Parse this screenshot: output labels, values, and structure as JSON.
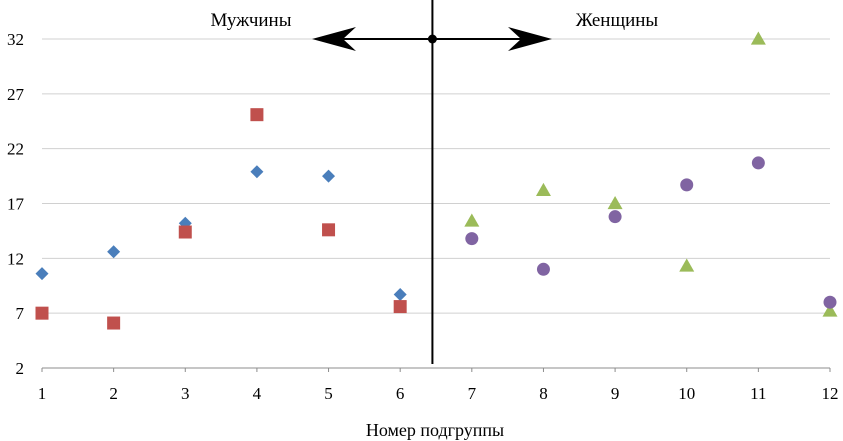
{
  "chart_data": {
    "type": "scatter",
    "xlabel": "Номер подгруппы",
    "ylabel": "",
    "xlim": [
      1,
      12
    ],
    "ylim": [
      2,
      35
    ],
    "x_ticks": [
      1,
      2,
      3,
      4,
      5,
      6,
      7,
      8,
      9,
      10,
      11,
      12
    ],
    "y_ticks": [
      2,
      7,
      12,
      17,
      22,
      27,
      32
    ],
    "grid": "horizontal",
    "legend": "none",
    "divider_x": 6.45,
    "annotations": {
      "left": "Мужчины",
      "right": "Женщины"
    },
    "series": [
      {
        "marker": "diamond",
        "color": "#4a7ebb",
        "x": [
          1,
          2,
          3,
          4,
          5,
          6
        ],
        "y": [
          10.6,
          12.6,
          15.2,
          19.9,
          19.5,
          8.7
        ]
      },
      {
        "marker": "square",
        "color": "#c0504d",
        "x": [
          1,
          2,
          3,
          4,
          5,
          6
        ],
        "y": [
          7.0,
          6.1,
          14.4,
          25.1,
          14.6,
          7.6
        ]
      },
      {
        "marker": "triangle",
        "color": "#9bbb59",
        "x": [
          7,
          8,
          9,
          10,
          11,
          12
        ],
        "y": [
          15.4,
          18.2,
          17.0,
          11.3,
          32.0,
          7.2
        ]
      },
      {
        "marker": "circle",
        "color": "#8064a2",
        "x": [
          7,
          8,
          9,
          10,
          11,
          12
        ],
        "y": [
          13.8,
          11.0,
          15.8,
          18.7,
          20.7,
          8.0
        ]
      }
    ]
  }
}
